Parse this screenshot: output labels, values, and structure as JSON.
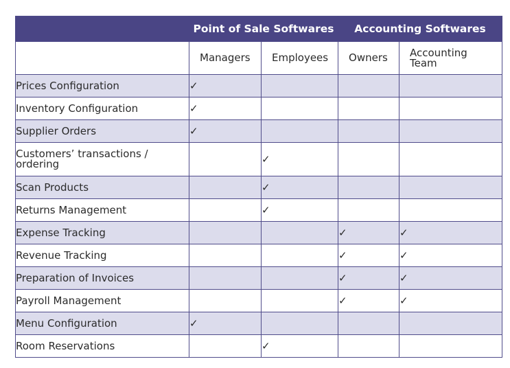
{
  "header": {
    "groups": [
      "Point of Sale Softwares",
      "Accounting Softwares"
    ],
    "roles": [
      "Managers",
      "Employees",
      "Owners",
      "Accounting Team"
    ]
  },
  "check_symbol": "✓",
  "colors": {
    "header_bg": "#4a4585",
    "row_shade": "#dcdcec",
    "border": "#4f4b8a"
  },
  "rows": [
    {
      "label": "Prices Configuration",
      "checks": [
        true,
        false,
        false,
        false
      ]
    },
    {
      "label": "Inventory Configuration",
      "checks": [
        true,
        false,
        false,
        false
      ]
    },
    {
      "label": "Supplier Orders",
      "checks": [
        true,
        false,
        false,
        false
      ]
    },
    {
      "label": "Customers’ transactions / ordering",
      "checks": [
        false,
        true,
        false,
        false
      ]
    },
    {
      "label": "Scan Products",
      "checks": [
        false,
        true,
        false,
        false
      ]
    },
    {
      "label": "Returns Management",
      "checks": [
        false,
        true,
        false,
        false
      ]
    },
    {
      "label": "Expense Tracking",
      "checks": [
        false,
        false,
        true,
        true
      ]
    },
    {
      "label": "Revenue Tracking",
      "checks": [
        false,
        false,
        true,
        true
      ]
    },
    {
      "label": "Preparation of Invoices",
      "checks": [
        false,
        false,
        true,
        true
      ]
    },
    {
      "label": "Payroll Management",
      "checks": [
        false,
        false,
        true,
        true
      ]
    },
    {
      "label": "Menu Configuration",
      "checks": [
        true,
        false,
        false,
        false
      ]
    },
    {
      "label": "Room Reservations",
      "checks": [
        false,
        true,
        false,
        false
      ]
    }
  ]
}
